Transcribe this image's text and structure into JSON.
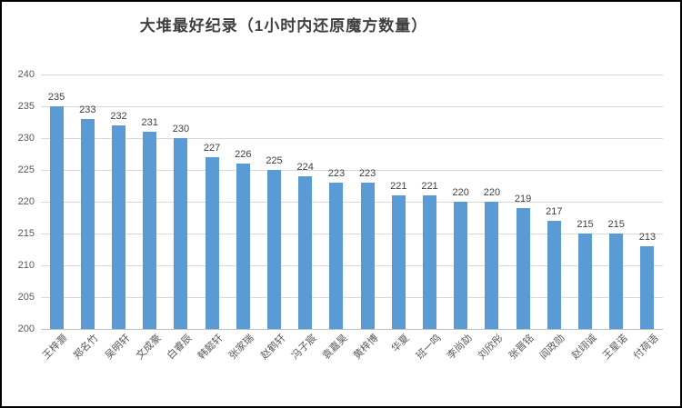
{
  "title": "大堆最好纪录（1小时内还原魔方数量）",
  "chart_data": {
    "type": "bar",
    "title": "大堆最好纪录（1小时内还原魔方数量）",
    "categories": [
      "王梓灏",
      "郑名竹",
      "吴明轩",
      "文成豪",
      "白睿辰",
      "韩懿轩",
      "张家瑞",
      "赵鹤轩",
      "冯子宸",
      "袁嘉昊",
      "黄梓博",
      "华夏",
      "班一鸣",
      "李尚劼",
      "刘欣彤",
      "张晋铭",
      "阎政勋",
      "赵翊诚",
      "王星诺",
      "付荷语"
    ],
    "values": [
      235,
      233,
      232,
      231,
      230,
      227,
      226,
      225,
      224,
      223,
      223,
      221,
      221,
      220,
      220,
      219,
      217,
      215,
      215,
      213
    ],
    "xlabel": "",
    "ylabel": "",
    "ylim": [
      200,
      240
    ],
    "yticks": [
      200,
      205,
      210,
      215,
      220,
      225,
      230,
      235,
      240
    ],
    "grid": true,
    "legend": false,
    "data_labels": true
  },
  "colors": {
    "bar": "#5B9BD5",
    "grid": "#D9D9D9",
    "axis_line": "#BFBFBF",
    "title_text": "#404040",
    "tick_text": "#595959",
    "data_label_text": "#404040",
    "border": "#000000",
    "background": "#FFFFFF"
  }
}
